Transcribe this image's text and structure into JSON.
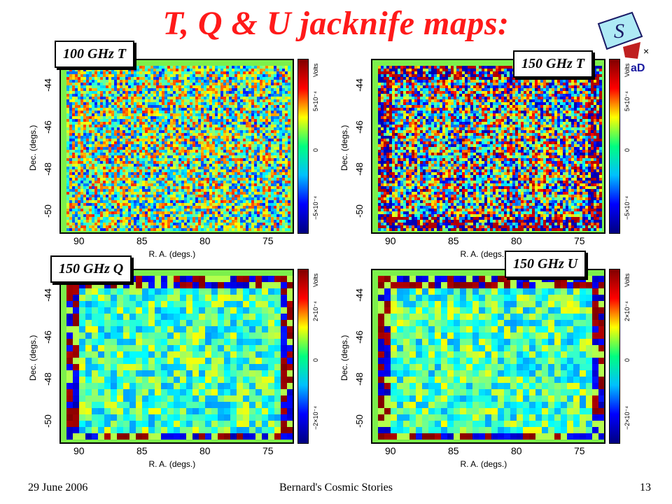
{
  "slide": {
    "title": "T, Q & U jacknife maps:",
    "footer_date": "29 June 2006",
    "footer_center": "Bernard's Cosmic Stories",
    "page_number": "13"
  },
  "axes": {
    "x_label": "R. A. (degs.)",
    "y_label": "Dec. (degs.)",
    "x_ticks": [
      "90",
      "85",
      "80",
      "75"
    ],
    "y_ticks": [
      "-44",
      "-46",
      "-48",
      "-50"
    ]
  },
  "panels": [
    {
      "label": "100 GHz T",
      "colorbar_unit": "Volts",
      "colorbar_ticks": [
        "5×10⁻⁴",
        "0",
        "−5×10⁻⁴"
      ],
      "texture": "noisy"
    },
    {
      "label": "150 GHz T",
      "colorbar_unit": "Volts",
      "colorbar_ticks": [
        "5×10⁻⁴",
        "0",
        "−5×10⁻⁴"
      ],
      "texture": "noisy-strong"
    },
    {
      "label": "150 GHz Q",
      "colorbar_unit": "Volts",
      "colorbar_ticks": [
        "2×10⁻⁴",
        "0",
        "−2×10⁻⁴"
      ],
      "texture": "smooth"
    },
    {
      "label": "150 GHz U",
      "colorbar_unit": "Volts",
      "colorbar_ticks": [
        "2×10⁻⁴",
        "0",
        "−2×10⁻⁴"
      ],
      "texture": "smooth"
    }
  ],
  "colors": {
    "title": "#ff1a1a",
    "field_green": "#7cf04c"
  }
}
